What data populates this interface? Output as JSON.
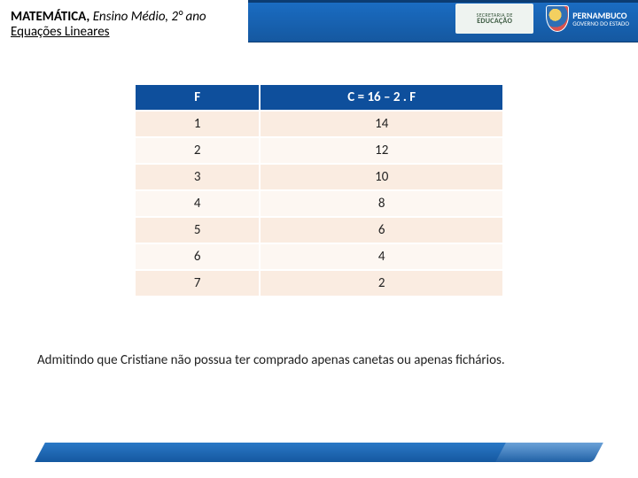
{
  "header": {
    "course_bold": "MATEMÁTICA,",
    "course_rest": " Ensino Médio, 2° ano",
    "subtitle": "Equações Lineares",
    "logo1_line1": "SECRETARIA DE",
    "logo1_line2": "EDUCAÇÃO",
    "logo2_name": "PERNAMBUCO",
    "logo2_sub": "GOVERNO DO ESTADO"
  },
  "table": {
    "columns": [
      "F",
      "C = 16 – 2 . F"
    ],
    "rows": [
      [
        "1",
        "14"
      ],
      [
        "2",
        "12"
      ],
      [
        "3",
        "10"
      ],
      [
        "4",
        "8"
      ],
      [
        "5",
        "6"
      ],
      [
        "6",
        "4"
      ],
      [
        "7",
        "2"
      ]
    ],
    "header_bg": "#0e4f9c",
    "header_color": "#ffffff",
    "row_odd_bg": "#faece1",
    "row_even_bg": "#fdf7f2",
    "font_size": 15
  },
  "body_text": "Admitindo que Cristiane não possua ter comprado apenas canetas ou apenas fichários.",
  "colors": {
    "blue_header": "#1558a0",
    "blue_border": "#0c3c72",
    "white": "#ffffff"
  }
}
